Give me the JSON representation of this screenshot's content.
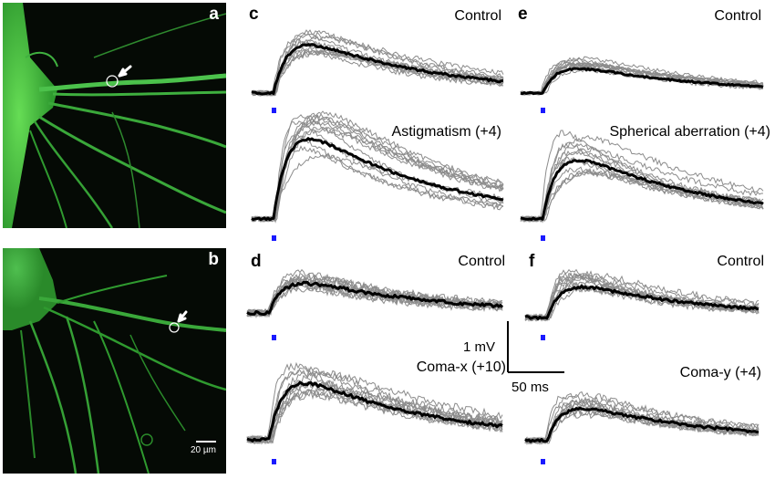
{
  "micrographs": [
    {
      "id": "a",
      "label": "a"
    },
    {
      "id": "b",
      "label": "b",
      "scale_bar_label": "20 µm"
    }
  ],
  "trace_panels": [
    {
      "id": "c",
      "label": "c",
      "conditions": [
        {
          "name": "Control"
        },
        {
          "name": "Astigmatism (+4)"
        }
      ]
    },
    {
      "id": "e",
      "label": "e",
      "conditions": [
        {
          "name": "Control"
        },
        {
          "name": "Spherical aberration (+4)"
        }
      ]
    },
    {
      "id": "d",
      "label": "d",
      "conditions": [
        {
          "name": "Control"
        },
        {
          "name": "Coma-x (+10)"
        }
      ]
    },
    {
      "id": "f",
      "label": "f",
      "conditions": [
        {
          "name": "Control"
        },
        {
          "name": "Coma-y (+4)"
        }
      ]
    }
  ],
  "scale_bar": {
    "voltage_label": "1 mV",
    "time_label": "50 ms"
  },
  "colors": {
    "trace_individual": "#8c8c8c",
    "trace_mean": "#000000",
    "stimulus_marker": "#1a1aff",
    "fluorescence": "#3aa83a",
    "micrograph_background": "#050a05"
  }
}
